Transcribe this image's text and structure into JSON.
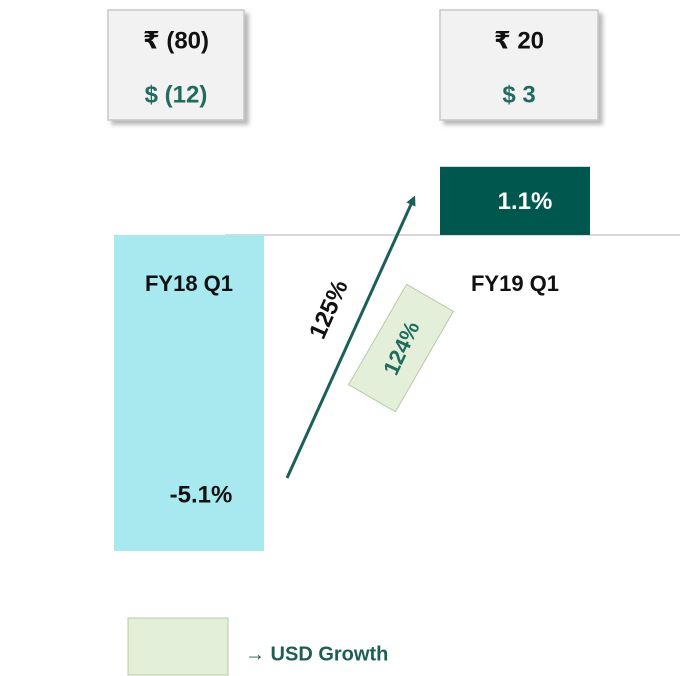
{
  "chart_data": {
    "type": "bar",
    "categories": [
      "FY18 Q1",
      "FY19 Q1"
    ],
    "values": [
      -5.1,
      1.1
    ],
    "value_labels": [
      "-5.1%",
      "1.1%"
    ],
    "colors": [
      "#a8e9f0",
      "#00574d"
    ],
    "value_label_colors": [
      "#111111",
      "#ffffff"
    ],
    "ylim": [
      -5.1,
      1.3
    ],
    "callouts": [
      {
        "inr": "₹ (80)",
        "usd": "$ (12)"
      },
      {
        "inr": "₹ 20",
        "usd": "$ 3"
      }
    ],
    "arrow_label": "125%",
    "growth_label": "124%",
    "growth_color": "#e4efd9",
    "arrow_color": "#1b5f56",
    "legend": {
      "label": "→ USD Growth"
    }
  }
}
